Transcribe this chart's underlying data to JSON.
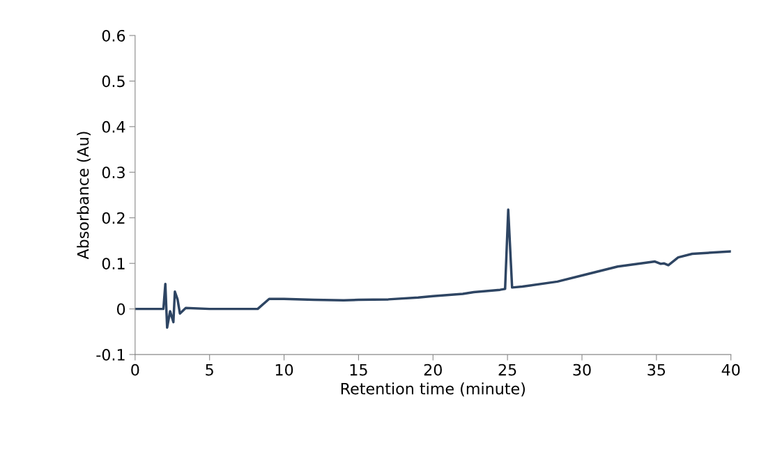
{
  "chart_data": {
    "type": "line",
    "xlabel": "Retention time (minute)",
    "ylabel": "Absorbance (Au)",
    "x": [
      0,
      1,
      1.9,
      2.03,
      2.15,
      2.35,
      2.57,
      2.67,
      2.85,
      3.01,
      3.4,
      5,
      8.23,
      9.0,
      10,
      12,
      14,
      15,
      17,
      19,
      20,
      22,
      22.74,
      24.5,
      24.84,
      25.05,
      25.31,
      26,
      28.35,
      30.2,
      32.4,
      34.9,
      35.29,
      35.5,
      35.8,
      36.46,
      37.4,
      39.95
    ],
    "series": [
      {
        "color": "#2e4563",
        "values": [
          0,
          0,
          0,
          0.055,
          -0.041,
          -0.005,
          -0.029,
          0.038,
          0.021,
          -0.01,
          0.002,
          0,
          0,
          0.022,
          0.022,
          0.02,
          0.019,
          0.02,
          0.021,
          0.025,
          0.028,
          0.033,
          0.037,
          0.042,
          0.044,
          0.218,
          0.047,
          0.049,
          0.06,
          0.075,
          0.093,
          0.104,
          0.099,
          0.1,
          0.096,
          0.113,
          0.121,
          0.126
        ]
      }
    ],
    "xlim": [
      0,
      40
    ],
    "xticks": [
      0,
      5,
      10,
      15,
      20,
      25,
      30,
      35,
      40
    ],
    "ylim": [
      -0.1,
      0.6
    ],
    "yticks": [
      -0.1,
      0,
      0.1,
      0.2,
      0.3,
      0.4,
      0.5,
      0.6
    ],
    "grid": false,
    "legend": false
  }
}
